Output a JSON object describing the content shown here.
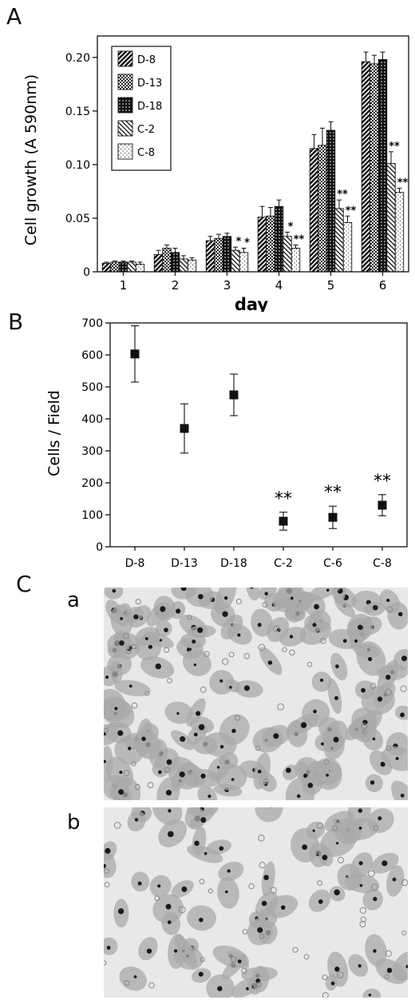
{
  "panels": {
    "a": "A",
    "b": "B",
    "c": "C",
    "c_sub_a": "a",
    "c_sub_b": "b"
  },
  "chart_data": [
    {
      "type": "bar",
      "panel": "A",
      "xlabel": "day",
      "ylabel": "Cell growth (A 590nm)",
      "categories": [
        "1",
        "2",
        "3",
        "4",
        "5",
        "6"
      ],
      "ylim": [
        0,
        0.22
      ],
      "yticks": [
        0,
        0.05,
        0.1,
        0.15,
        0.2
      ],
      "ytick_labels": [
        "0",
        "0.05",
        "0.10",
        "0.15",
        "0.20"
      ],
      "legend_position": "top-left",
      "series": [
        {
          "name": "D-8",
          "values": [
            0.008,
            0.016,
            0.029,
            0.051,
            0.115,
            0.196
          ],
          "errors": [
            0.001,
            0.004,
            0.004,
            0.01,
            0.013,
            0.009
          ]
        },
        {
          "name": "D-13",
          "values": [
            0.009,
            0.022,
            0.031,
            0.052,
            0.118,
            0.194
          ],
          "errors": [
            0.001,
            0.003,
            0.004,
            0.008,
            0.016,
            0.008
          ]
        },
        {
          "name": "D-18",
          "values": [
            0.009,
            0.018,
            0.033,
            0.061,
            0.132,
            0.198
          ],
          "errors": [
            0.001,
            0.004,
            0.003,
            0.006,
            0.008,
            0.007
          ]
        },
        {
          "name": "C-2",
          "values": [
            0.009,
            0.012,
            0.02,
            0.033,
            0.059,
            0.101
          ],
          "errors": [
            0.001,
            0.003,
            0.003,
            0.004,
            0.008,
            0.011
          ]
        },
        {
          "name": "C-8",
          "values": [
            0.007,
            0.011,
            0.018,
            0.022,
            0.046,
            0.074
          ],
          "errors": [
            0.002,
            0.002,
            0.004,
            0.003,
            0.006,
            0.004
          ]
        }
      ],
      "annotations": [
        {
          "series": "C-2",
          "category": "3",
          "text": "*"
        },
        {
          "series": "C-8",
          "category": "3",
          "text": "*"
        },
        {
          "series": "C-2",
          "category": "4",
          "text": "*"
        },
        {
          "series": "C-8",
          "category": "4",
          "text": "**"
        },
        {
          "series": "C-2",
          "category": "5",
          "text": "**"
        },
        {
          "series": "C-8",
          "category": "5",
          "text": "**"
        },
        {
          "series": "C-2",
          "category": "6",
          "text": "**"
        },
        {
          "series": "C-8",
          "category": "6",
          "text": "**"
        }
      ]
    },
    {
      "type": "scatter",
      "panel": "B",
      "ylabel": "Cells / Field",
      "xlabel": "",
      "categories": [
        "D-8",
        "D-13",
        "D-18",
        "C-2",
        "C-6",
        "C-8"
      ],
      "values": [
        603,
        370,
        475,
        80,
        92,
        130
      ],
      "errors": [
        88,
        77,
        65,
        28,
        35,
        33
      ],
      "ylim": [
        0,
        700
      ],
      "yticks": [
        0,
        100,
        200,
        300,
        400,
        500,
        600,
        700
      ],
      "annotations": [
        {
          "category": "C-2",
          "text": "**"
        },
        {
          "category": "C-6",
          "text": "**"
        },
        {
          "category": "C-8",
          "text": "**"
        }
      ]
    }
  ]
}
